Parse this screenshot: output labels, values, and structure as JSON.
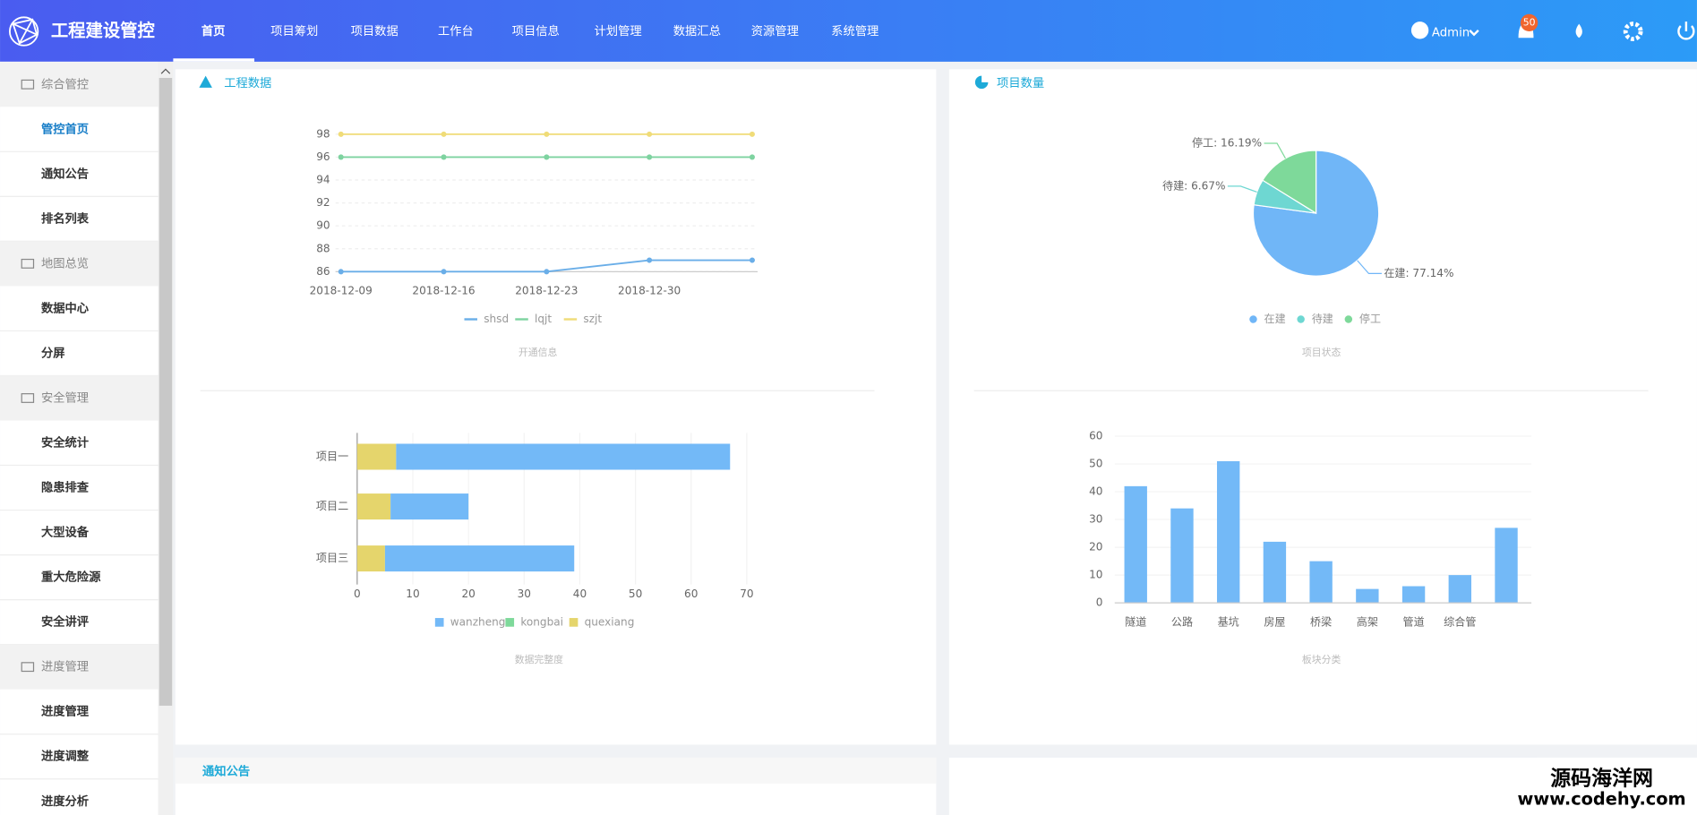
{
  "header": {
    "logo": "工程建设管控",
    "nav": [
      "首页",
      "项目筹划",
      "项目数据",
      "工作台",
      "项目信息",
      "计划管理",
      "数据汇总",
      "资源管理",
      "系统管理"
    ],
    "user": "Admin",
    "badge": "50"
  },
  "sidebar": {
    "groups": [
      {
        "title": "综合管控",
        "items": [
          "管控首页",
          "通知公告",
          "排名列表"
        ]
      },
      {
        "title": "地图总览",
        "items": [
          "数据中心",
          "分屏"
        ]
      },
      {
        "title": "安全管理",
        "items": [
          "安全统计",
          "隐患排查",
          "大型设备",
          "重大危险源",
          "安全讲评"
        ]
      },
      {
        "title": "进度管理",
        "items": [
          "进度管理",
          "进度调整",
          "进度分析"
        ]
      }
    ]
  },
  "panels": {
    "left_title": "工程数据",
    "right_title": "项目数量",
    "notice_title": "通知公告"
  },
  "chart_data": [
    {
      "type": "line",
      "title": "开通信息",
      "categories": [
        "2018-12-09",
        "2018-12-16",
        "2018-12-23",
        "2018-12-30",
        null
      ],
      "series": [
        {
          "name": "shsd",
          "color": "#6aaee8",
          "values": [
            86,
            86,
            86,
            87,
            87
          ]
        },
        {
          "name": "lqjt",
          "color": "#7ed3a0",
          "values": [
            96,
            96,
            96,
            96,
            96
          ]
        },
        {
          "name": "szjt",
          "color": "#f0dc78",
          "values": [
            98,
            98,
            98,
            98,
            98
          ]
        }
      ],
      "ylim": [
        86,
        98
      ],
      "yticks": [
        86,
        88,
        90,
        92,
        94,
        96,
        98
      ],
      "grid": true
    },
    {
      "type": "pie",
      "title": "项目状态",
      "categories": [
        "在建",
        "待建",
        "停工"
      ],
      "values": [
        77.14,
        6.67,
        16.19
      ],
      "value_labels": [
        "在建: 77.14%",
        "待建: 6.67%",
        "停工: 16.19%"
      ],
      "colors": [
        "#70b6f7",
        "#6ed7d2",
        "#7ed99a"
      ]
    },
    {
      "type": "hbar",
      "title": "数据完整度",
      "categories": [
        "项目一",
        "项目二",
        "项目三"
      ],
      "series": [
        {
          "name": "wanzheng",
          "color": "#73b9f7",
          "values": [
            60,
            14,
            34
          ]
        },
        {
          "name": "kongbai",
          "color": "#7ed99a",
          "values": [
            0,
            0,
            0
          ]
        },
        {
          "name": "quexiang",
          "color": "#e5d56c",
          "values": [
            7,
            6,
            5
          ]
        }
      ],
      "stacked": true,
      "xlim": [
        0,
        70
      ],
      "xticks": [
        0,
        10,
        20,
        30,
        40,
        50,
        60,
        70
      ]
    },
    {
      "type": "bar",
      "title": "板块分类",
      "categories": [
        "隧道",
        "公路",
        "基坑",
        "房屋",
        "桥梁",
        "高架",
        "管道",
        "综合管",
        null
      ],
      "values": [
        42,
        34,
        51,
        22,
        15,
        5,
        6,
        10,
        27
      ],
      "color": "#73b9f7",
      "ylim": [
        0,
        60
      ],
      "yticks": [
        0,
        10,
        20,
        30,
        40,
        50,
        60
      ]
    }
  ],
  "watermark": {
    "name": "源码海洋网",
    "url": "www.codehy.com"
  }
}
